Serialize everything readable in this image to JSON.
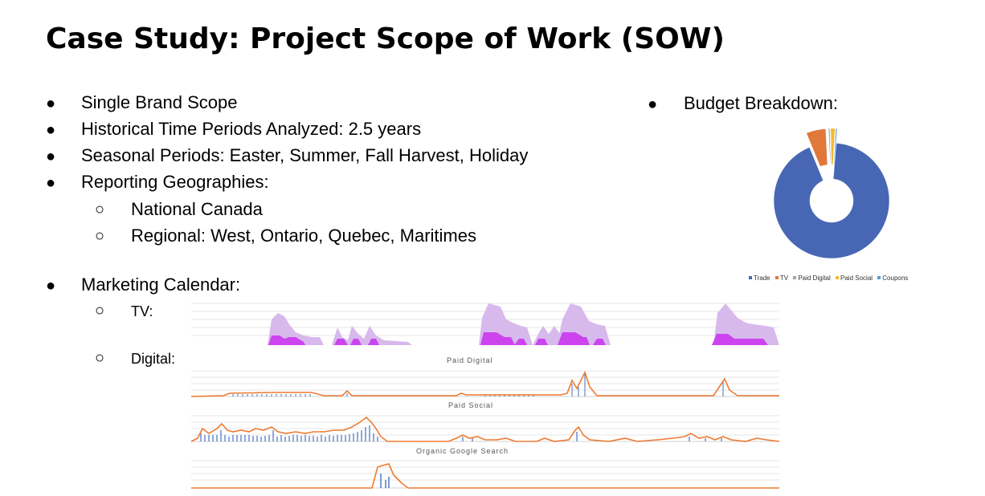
{
  "title": "Case Study:  Project Scope of Work (SOW)",
  "bullets": [
    "Single Brand Scope",
    "Historical Time Periods Analyzed:  2.5 years",
    "Seasonal Periods:  Easter, Summer, Fall Harvest, Holiday",
    "Reporting Geographies:"
  ],
  "sub_bullets": [
    "National Canada",
    "Regional: West, Ontario, Quebec, Maritimes"
  ],
  "marketing_calendar": {
    "label": "Marketing Calendar:",
    "items": [
      "TV:",
      "Digital:"
    ]
  },
  "budget": {
    "label": "Budget Breakdown:"
  },
  "chart_data": [
    {
      "type": "pie",
      "title": "",
      "categories": [
        "Trade",
        "TV",
        "Paid Digital",
        "Paid Social",
        "Coupons"
      ],
      "values": [
        92.5,
        5.5,
        0.4,
        1.2,
        0.4
      ],
      "colors": [
        "#4767b5",
        "#e0783a",
        "#a5a5a5",
        "#f5b92d",
        "#5a9bd5"
      ],
      "legend": "bottom"
    },
    {
      "type": "area",
      "title": "",
      "series": [
        {
          "values": [
            0,
            0,
            0,
            0,
            0,
            0,
            0,
            0,
            0,
            0,
            0,
            0,
            0,
            0,
            0,
            0,
            0,
            0,
            0,
            0,
            0,
            0,
            0,
            0,
            0,
            0,
            0,
            0,
            0,
            0,
            0,
            0,
            0,
            0,
            0,
            0,
            0,
            0,
            0,
            0,
            0,
            0,
            0,
            0,
            0,
            0,
            0,
            0,
            0,
            0,
            0,
            0
          ]
        }
      ]
    },
    {
      "type": "line",
      "title": "Paid Digital"
    },
    {
      "type": "line",
      "title": "Paid Social"
    },
    {
      "type": "line",
      "title": "Organic Google Search"
    }
  ],
  "colors": {
    "tv_light": "#d8b9ec",
    "tv_dark": "#cc44ee",
    "line": "#ee7a30",
    "bar": "#4472c4"
  }
}
